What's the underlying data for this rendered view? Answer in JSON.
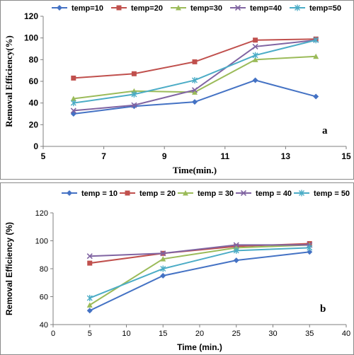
{
  "chart_data": [
    {
      "type": "line",
      "panel_letter": "a",
      "xlabel": "Time(min.)",
      "ylabel": "Removal Efficiency(%)",
      "xlim": [
        5,
        15
      ],
      "ylim": [
        0,
        120
      ],
      "xticks": [
        5,
        7,
        9,
        11,
        13,
        15
      ],
      "yticks": [
        0,
        20,
        40,
        60,
        80,
        100,
        120
      ],
      "grid": false,
      "legend_position": "top",
      "x": [
        6,
        8,
        10,
        12,
        14
      ],
      "series": [
        {
          "name": "temp=10",
          "color": "#4472C4",
          "marker": "diamond",
          "values": [
            30,
            37,
            41,
            61,
            46
          ]
        },
        {
          "name": "temp=20",
          "color": "#C0504D",
          "marker": "square",
          "values": [
            63,
            67,
            78,
            98,
            99
          ]
        },
        {
          "name": "temp=30",
          "color": "#9BBB59",
          "marker": "triangle",
          "values": [
            44,
            51,
            50,
            80,
            83
          ]
        },
        {
          "name": "temp=40",
          "color": "#8064A2",
          "marker": "x",
          "values": [
            33,
            38,
            52,
            92,
            98
          ]
        },
        {
          "name": "temp=50",
          "color": "#4BACC6",
          "marker": "star",
          "values": [
            40,
            48,
            61,
            84,
            98
          ]
        }
      ]
    },
    {
      "type": "line",
      "panel_letter": "b",
      "xlabel": "Time (min.)",
      "ylabel": "Removal Efficiency (%)",
      "xlim": [
        0,
        40
      ],
      "ylim": [
        40,
        120
      ],
      "xticks": [
        0,
        5,
        10,
        15,
        20,
        25,
        30,
        35,
        40
      ],
      "yticks": [
        40,
        60,
        80,
        100,
        120
      ],
      "grid": false,
      "legend_position": "top",
      "x": [
        5,
        15,
        25,
        35
      ],
      "series": [
        {
          "name": "temp = 10",
          "color": "#4472C4",
          "marker": "diamond",
          "values": [
            50,
            75,
            86,
            92
          ]
        },
        {
          "name": "temp = 20",
          "color": "#C0504D",
          "marker": "square",
          "values": [
            84,
            91,
            96,
            98
          ]
        },
        {
          "name": "temp = 30",
          "color": "#9BBB59",
          "marker": "triangle",
          "values": [
            54,
            87,
            95,
            97
          ]
        },
        {
          "name": "temp = 40",
          "color": "#8064A2",
          "marker": "x",
          "values": [
            89,
            91,
            97,
            97
          ]
        },
        {
          "name": "temp = 50",
          "color": "#4BACC6",
          "marker": "star",
          "values": [
            59,
            80,
            93,
            95
          ]
        }
      ]
    }
  ]
}
